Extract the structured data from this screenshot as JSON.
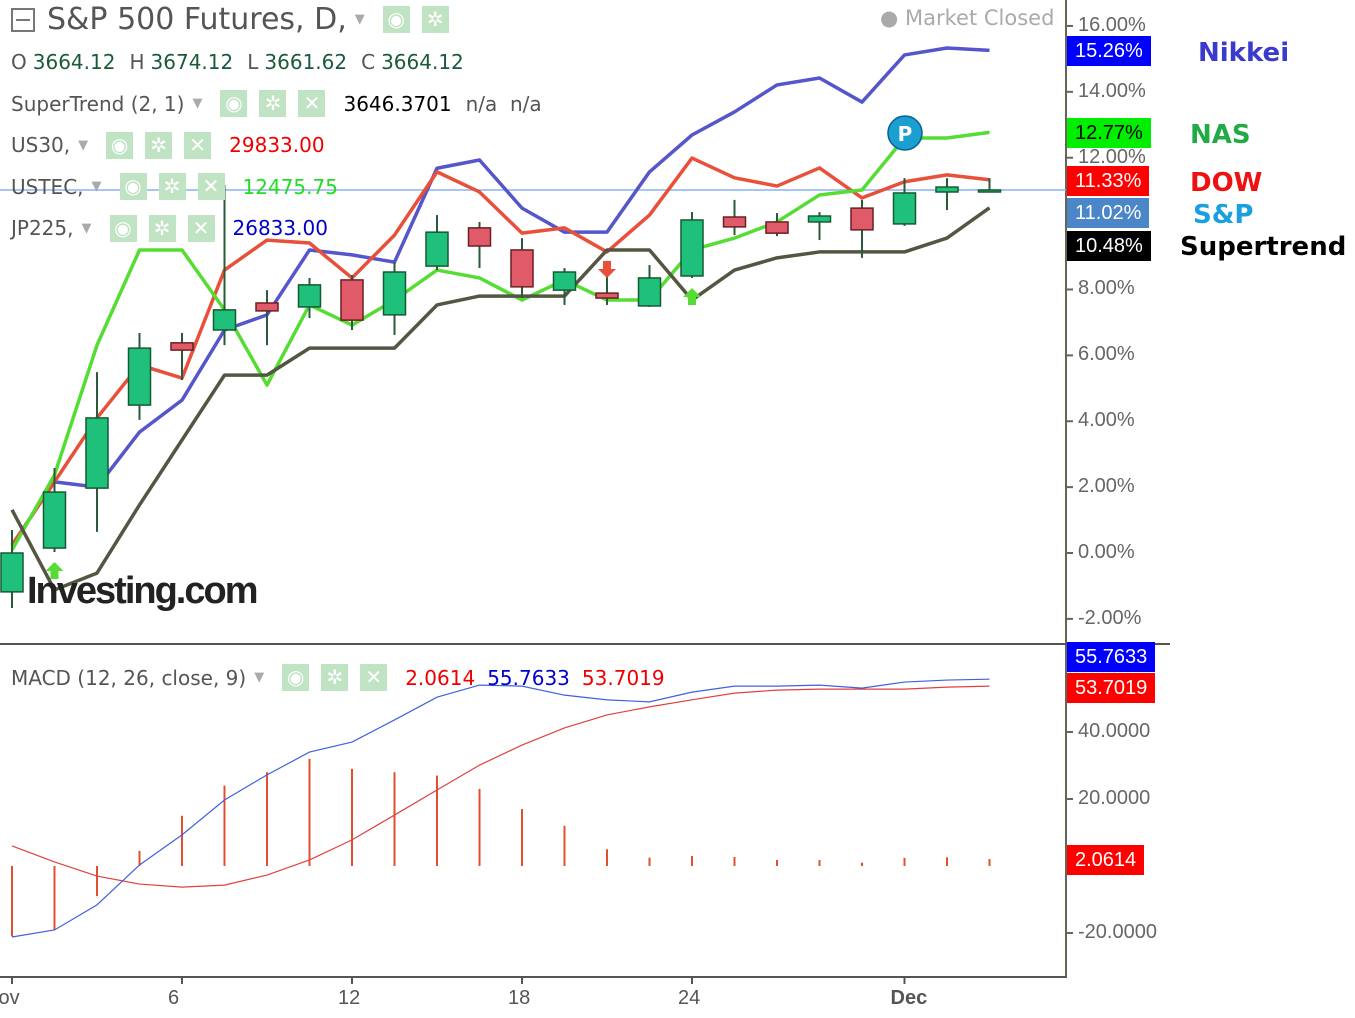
{
  "header": {
    "title": "S&P 500 Futures, D,",
    "status": "Market Closed",
    "ohlc": [
      {
        "k": "O",
        "v": "3664.12"
      },
      {
        "k": "H",
        "v": "3674.12"
      },
      {
        "k": "L",
        "v": "3661.62"
      },
      {
        "k": "C",
        "v": "3664.12"
      }
    ]
  },
  "legend": [
    {
      "label": "SuperTrend (2, 1)",
      "value": "3646.3701",
      "extra": "n/a  n/a",
      "color": "#000000"
    },
    {
      "label": "US30,",
      "value": "29833.00",
      "color": "#ee0000"
    },
    {
      "label": "USTEC,",
      "value": "12475.75",
      "color": "#22dd22"
    },
    {
      "label": "JP225,",
      "value": "26833.00",
      "color": "#0000cc"
    }
  ],
  "macd_legend": {
    "label": "MACD (12, 26, close, 9)",
    "values": [
      {
        "v": "2.0614",
        "color": "#ee0000"
      },
      {
        "v": "55.7633",
        "color": "#0000cc"
      },
      {
        "v": "53.7019",
        "color": "#ee0000"
      }
    ]
  },
  "logo": "Investing.com",
  "marker_p": "P",
  "price_labels": [
    {
      "text": "15.26%",
      "bg": "#0000ff",
      "fg": "#ffffff",
      "name": "Nikkei",
      "name_color": "#3a3acc",
      "value": 15.26
    },
    {
      "text": "12.77%",
      "bg": "#00ee00",
      "fg": "#000000",
      "name": "NAS",
      "name_color": "#22aa44",
      "value": 12.77
    },
    {
      "text": "11.33%",
      "bg": "#ff0000",
      "fg": "#ffffff",
      "name": "DOW",
      "name_color": "#ee1111",
      "value": 11.33
    },
    {
      "text": "11.02%",
      "bg": "#4a86c8",
      "fg": "#ffffff",
      "name": "S&P",
      "name_color": "#1aa0e0",
      "value": 11.02
    },
    {
      "text": "10.48%",
      "bg": "#000000",
      "fg": "#ffffff",
      "name": "Supertrend",
      "name_color": "#000000",
      "value": 10.48
    }
  ],
  "macd_labels": [
    {
      "text": "55.7633",
      "bg": "#0000ff",
      "value": 55.7633
    },
    {
      "text": "53.7019",
      "bg": "#ff0000",
      "value": 53.7019
    },
    {
      "text": "2.0614",
      "bg": "#ff0000",
      "value": 2.0614
    }
  ],
  "chart_data": [
    {
      "type": "candlestick+line",
      "yunit": "%",
      "ylim": [
        -2.6,
        16.8
      ],
      "yticks": [
        "16.00%",
        "14.00%",
        "12.00%",
        "8.00%",
        "6.00%",
        "4.00%",
        "2.00%",
        "0.00%",
        "-2.00%"
      ],
      "ytick_values": [
        16,
        14,
        12,
        8,
        6,
        4,
        2,
        0,
        -2
      ],
      "xticks": [
        {
          "label": "Nov",
          "i": 0
        },
        {
          "label": "6",
          "i": 4
        },
        {
          "label": "12",
          "i": 8
        },
        {
          "label": "18",
          "i": 12
        },
        {
          "label": "24",
          "i": 16
        },
        {
          "label": "Dec",
          "i": 21
        }
      ],
      "candles": [
        [
          -1.18,
          0.7,
          -1.67,
          0.0
        ],
        [
          0.15,
          2.58,
          0.03,
          1.85
        ],
        [
          1.97,
          5.49,
          0.64,
          4.1
        ],
        [
          4.49,
          6.68,
          4.04,
          6.22
        ],
        [
          6.38,
          6.68,
          5.25,
          6.16
        ],
        [
          6.77,
          11.17,
          6.31,
          7.38
        ],
        [
          7.59,
          7.98,
          6.31,
          7.35
        ],
        [
          7.47,
          8.35,
          7.13,
          8.14
        ],
        [
          8.29,
          8.44,
          6.77,
          7.07
        ],
        [
          7.23,
          8.83,
          6.62,
          8.53
        ],
        [
          8.71,
          10.26,
          8.59,
          9.74
        ],
        [
          9.87,
          10.05,
          8.65,
          9.32
        ],
        [
          9.2,
          9.56,
          7.74,
          8.08
        ],
        [
          7.98,
          8.65,
          7.53,
          8.53
        ],
        [
          7.89,
          8.53,
          7.53,
          7.74
        ],
        [
          7.5,
          8.74,
          7.47,
          8.35
        ],
        [
          8.41,
          10.35,
          8.35,
          10.11
        ],
        [
          10.2,
          10.72,
          9.65,
          9.9
        ],
        [
          10.05,
          10.32,
          9.62,
          9.71
        ],
        [
          10.05,
          10.35,
          9.5,
          10.23
        ],
        [
          10.47,
          10.72,
          8.96,
          9.81
        ],
        [
          9.99,
          11.38,
          9.93,
          10.93
        ],
        [
          10.96,
          11.38,
          10.41,
          11.11
        ],
        [
          11.02,
          11.38,
          11.02,
          11.02
        ]
      ],
      "series": [
        {
          "name": "Nikkei",
          "color": "#5555cc",
          "values": [
            0.24,
            2.16,
            2.0,
            3.67,
            4.64,
            6.77,
            7.23,
            9.2,
            9.05,
            8.83,
            11.68,
            11.93,
            10.47,
            9.74,
            9.74,
            11.57,
            12.69,
            13.39,
            14.21,
            14.42,
            13.69,
            15.12,
            15.33,
            15.26
          ]
        },
        {
          "name": "DOW",
          "color": "#e8503a",
          "values": [
            0.24,
            2.16,
            4.1,
            5.71,
            5.31,
            8.59,
            9.5,
            9.41,
            8.35,
            9.65,
            11.57,
            10.96,
            9.71,
            9.87,
            9.14,
            10.26,
            11.99,
            11.39,
            11.14,
            11.69,
            10.78,
            11.27,
            11.48,
            11.33
          ]
        },
        {
          "name": "NAS",
          "color": "#55dd33",
          "values": [
            0.09,
            2.37,
            6.31,
            9.2,
            9.2,
            7.38,
            5.1,
            7.53,
            6.92,
            7.68,
            8.59,
            8.35,
            7.68,
            8.29,
            7.68,
            7.68,
            9.2,
            9.56,
            10.05,
            10.87,
            11.02,
            12.6,
            12.6,
            12.77
          ]
        },
        {
          "name": "Supertrend",
          "color": "#555544",
          "values": [
            1.31,
            -1.12,
            -0.61,
            1.46,
            3.43,
            5.4,
            5.4,
            6.22,
            6.22,
            6.22,
            7.53,
            7.8,
            7.8,
            7.8,
            9.2,
            9.2,
            7.68,
            8.59,
            8.96,
            9.14,
            9.14,
            9.14,
            9.56,
            10.48
          ]
        }
      ],
      "reference_line": 11.02,
      "arrows": [
        {
          "i": 1,
          "dir": "up"
        },
        {
          "i": 14,
          "dir": "down"
        },
        {
          "i": 16,
          "dir": "up"
        }
      ]
    },
    {
      "type": "macd",
      "ylim": [
        -27,
        62
      ],
      "yticks": [
        "40.0000",
        "20.0000",
        "-20.0000"
      ],
      "ytick_values": [
        40,
        20,
        -20
      ],
      "macd": [
        -21.2,
        -19.1,
        -11.6,
        0.3,
        9.3,
        19.7,
        27.2,
        34.0,
        37.0,
        43.6,
        50.4,
        54.0,
        53.7,
        51.0,
        49.6,
        49.0,
        51.9,
        53.7,
        53.7,
        54.0,
        53.1,
        54.9,
        55.5,
        55.76
      ],
      "signal": [
        6.0,
        1.2,
        -3.0,
        -5.4,
        -6.3,
        -5.7,
        -2.7,
        1.8,
        7.8,
        15.2,
        22.7,
        30.1,
        36.1,
        41.2,
        45.1,
        47.5,
        49.6,
        51.6,
        52.5,
        52.8,
        52.8,
        52.8,
        53.4,
        53.7
      ],
      "histogram": [
        -21,
        -19,
        -9,
        4.5,
        15,
        24,
        28,
        32,
        29,
        28,
        27,
        23,
        17,
        12,
        5,
        2.5,
        3,
        2.7,
        1.8,
        1.8,
        1,
        2.4,
        2.6,
        2.06
      ]
    }
  ]
}
